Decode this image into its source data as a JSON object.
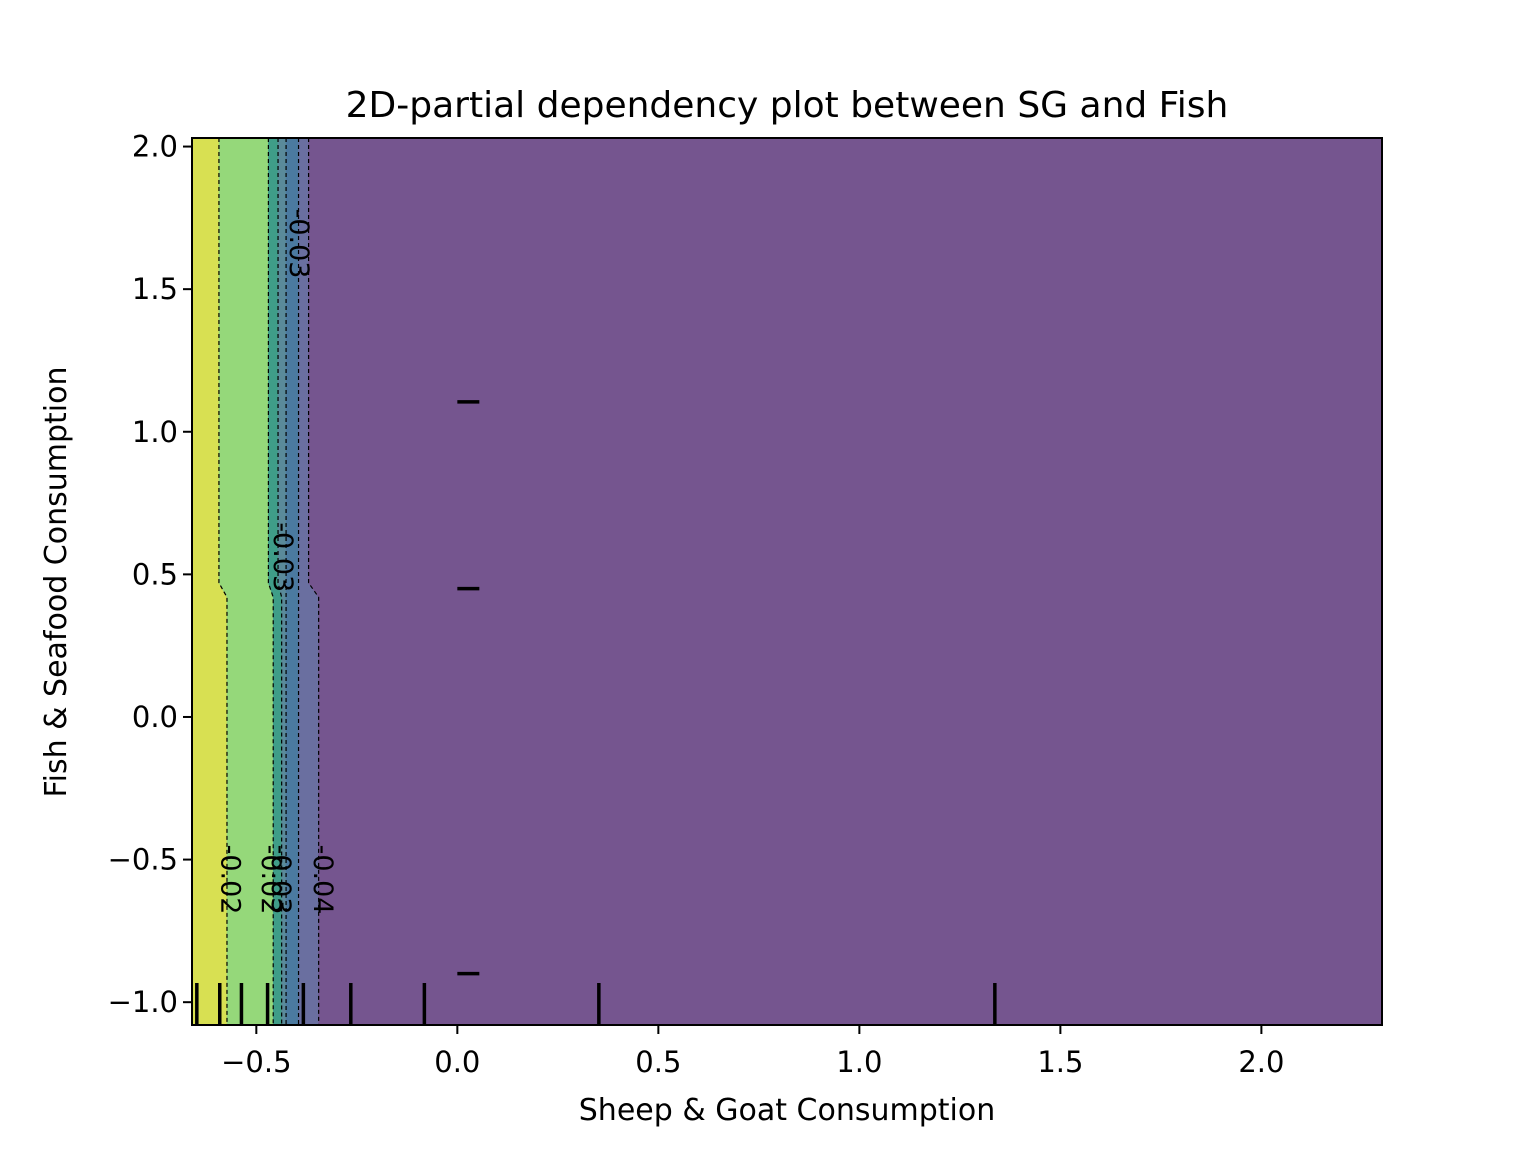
{
  "chart_data": {
    "type": "contour",
    "title": "2D-partial dependency plot between SG and Fish",
    "xlabel": "Sheep & Goat Consumption",
    "ylabel": "Fish & Seafood Consumption",
    "xlim": [
      -0.66,
      2.3
    ],
    "ylim": [
      -1.08,
      2.03
    ],
    "x_ticks": [
      {
        "value": -0.5,
        "label": "−0.5"
      },
      {
        "value": 0.0,
        "label": "0.0"
      },
      {
        "value": 0.5,
        "label": "0.5"
      },
      {
        "value": 1.0,
        "label": "1.0"
      },
      {
        "value": 1.5,
        "label": "1.5"
      },
      {
        "value": 2.0,
        "label": "2.0"
      }
    ],
    "y_ticks": [
      {
        "value": 2.0,
        "label": "2.0"
      },
      {
        "value": 1.5,
        "label": "1.5"
      },
      {
        "value": 1.0,
        "label": "1.0"
      },
      {
        "value": 0.5,
        "label": "0.5"
      },
      {
        "value": 0.0,
        "label": "0.0"
      },
      {
        "value": -0.5,
        "label": "−0.5"
      },
      {
        "value": -1.0,
        "label": "−1.0"
      }
    ],
    "regions": [
      {
        "color": "#d8e052",
        "top_x": -0.66,
        "bottom_x": -0.66
      },
      {
        "color": "#95d87a",
        "top_x": -0.593,
        "bottom_x": -0.573
      },
      {
        "color": "#3f9d88",
        "top_x": -0.47,
        "bottom_x": -0.458
      },
      {
        "color": "#5a8a9a",
        "top_x": -0.446,
        "bottom_x": -0.437
      },
      {
        "color": "#4b7aa0",
        "top_x": -0.426,
        "bottom_x": -0.426
      },
      {
        "color": "#6a6fa0",
        "top_x": -0.395,
        "bottom_x": -0.395
      },
      {
        "color": "#75558f",
        "top_x": -0.37,
        "bottom_x": -0.345
      }
    ],
    "break_y_top": 0.47,
    "break_y_bottom": 0.42,
    "contour_lines": [
      {
        "top_x": -0.593,
        "bottom_x": -0.573
      },
      {
        "top_x": -0.47,
        "bottom_x": -0.458
      },
      {
        "top_x": -0.446,
        "bottom_x": -0.437
      },
      {
        "top_x": -0.426,
        "bottom_x": -0.426
      },
      {
        "top_x": -0.395,
        "bottom_x": -0.395
      },
      {
        "top_x": -0.37,
        "bottom_x": -0.345
      }
    ],
    "contour_labels": [
      {
        "text": "-0.03",
        "x": -0.395,
        "y": 1.66
      },
      {
        "text": "-0.03",
        "x": -0.435,
        "y": 0.56
      },
      {
        "text": "-0.02",
        "x": -0.565,
        "y": -0.57
      },
      {
        "text": "-0.02",
        "x": -0.465,
        "y": -0.57
      },
      {
        "text": "-0.03",
        "x": -0.44,
        "y": -0.57
      },
      {
        "text": "-0.04",
        "x": -0.335,
        "y": -0.57
      }
    ],
    "x_rug": [
      -0.648,
      -0.591,
      -0.537,
      -0.472,
      -0.383,
      -0.265,
      -0.082,
      0.352,
      1.337
    ],
    "y_rug": [
      1.105,
      0.45,
      -0.9
    ],
    "grid": false
  }
}
